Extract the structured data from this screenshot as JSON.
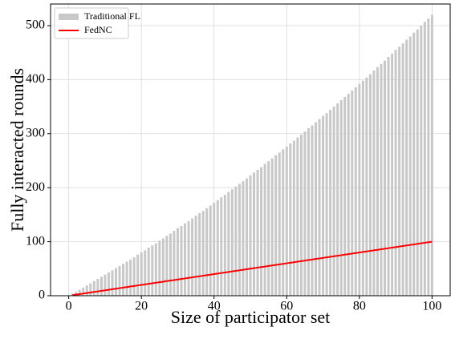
{
  "chart_data": {
    "type": "bar-line",
    "x_label": "Size of participator set",
    "y_label": "Fully interacted rounds",
    "x": [
      1,
      2,
      3,
      4,
      5,
      6,
      7,
      8,
      9,
      10,
      11,
      12,
      13,
      14,
      15,
      16,
      17,
      18,
      19,
      20,
      21,
      22,
      23,
      24,
      25,
      26,
      27,
      28,
      29,
      30,
      31,
      32,
      33,
      34,
      35,
      36,
      37,
      38,
      39,
      40,
      41,
      42,
      43,
      44,
      45,
      46,
      47,
      48,
      49,
      50,
      51,
      52,
      53,
      54,
      55,
      56,
      57,
      58,
      59,
      60,
      61,
      62,
      63,
      64,
      65,
      66,
      67,
      68,
      69,
      70,
      71,
      72,
      73,
      74,
      75,
      76,
      77,
      78,
      79,
      80,
      81,
      82,
      83,
      84,
      85,
      86,
      87,
      88,
      89,
      90,
      91,
      92,
      93,
      94,
      95,
      96,
      97,
      98,
      99,
      100
    ],
    "series": [
      {
        "name": "Traditional FL",
        "kind": "bar",
        "color": "#c8c8c8",
        "values": [
          4,
          7,
          11,
          15,
          19,
          23,
          27,
          31,
          35,
          39,
          43,
          47,
          51,
          55,
          59,
          63,
          67,
          71,
          76,
          80,
          84,
          89,
          93,
          97,
          102,
          106,
          111,
          115,
          120,
          125,
          129,
          134,
          138,
          143,
          148,
          153,
          157,
          162,
          167,
          172,
          177,
          182,
          187,
          192,
          197,
          202,
          207,
          212,
          217,
          223,
          228,
          233,
          238,
          244,
          249,
          254,
          260,
          265,
          271,
          276,
          282,
          287,
          293,
          298,
          304,
          310,
          315,
          321,
          327,
          333,
          338,
          344,
          350,
          356,
          362,
          368,
          374,
          380,
          386,
          392,
          398,
          404,
          410,
          417,
          423,
          429,
          435,
          442,
          448,
          455,
          461,
          467,
          474,
          480,
          487,
          493,
          500,
          507,
          513,
          520
        ]
      },
      {
        "name": "FedNC",
        "kind": "line",
        "color": "#ff0000",
        "values": [
          1,
          2,
          3,
          4,
          5,
          6,
          7,
          8,
          9,
          10,
          11,
          12,
          13,
          14,
          15,
          16,
          17,
          18,
          19,
          20,
          21,
          22,
          23,
          24,
          25,
          26,
          27,
          28,
          29,
          30,
          31,
          32,
          33,
          34,
          35,
          36,
          37,
          38,
          39,
          40,
          41,
          42,
          43,
          44,
          45,
          46,
          47,
          48,
          49,
          50,
          51,
          52,
          53,
          54,
          55,
          56,
          57,
          58,
          59,
          60,
          61,
          62,
          63,
          64,
          65,
          66,
          67,
          68,
          69,
          70,
          71,
          72,
          73,
          74,
          75,
          76,
          77,
          78,
          79,
          80,
          81,
          82,
          83,
          84,
          85,
          86,
          87,
          88,
          89,
          90,
          91,
          92,
          93,
          94,
          95,
          96,
          97,
          98,
          99,
          100
        ]
      }
    ],
    "xlim": [
      -5,
      105
    ],
    "xticks": [
      0,
      20,
      40,
      60,
      80,
      100
    ],
    "ylim": [
      0,
      540
    ],
    "yticks": [
      0,
      100,
      200,
      300,
      400,
      500
    ],
    "grid": true,
    "legend": "upper-left"
  }
}
